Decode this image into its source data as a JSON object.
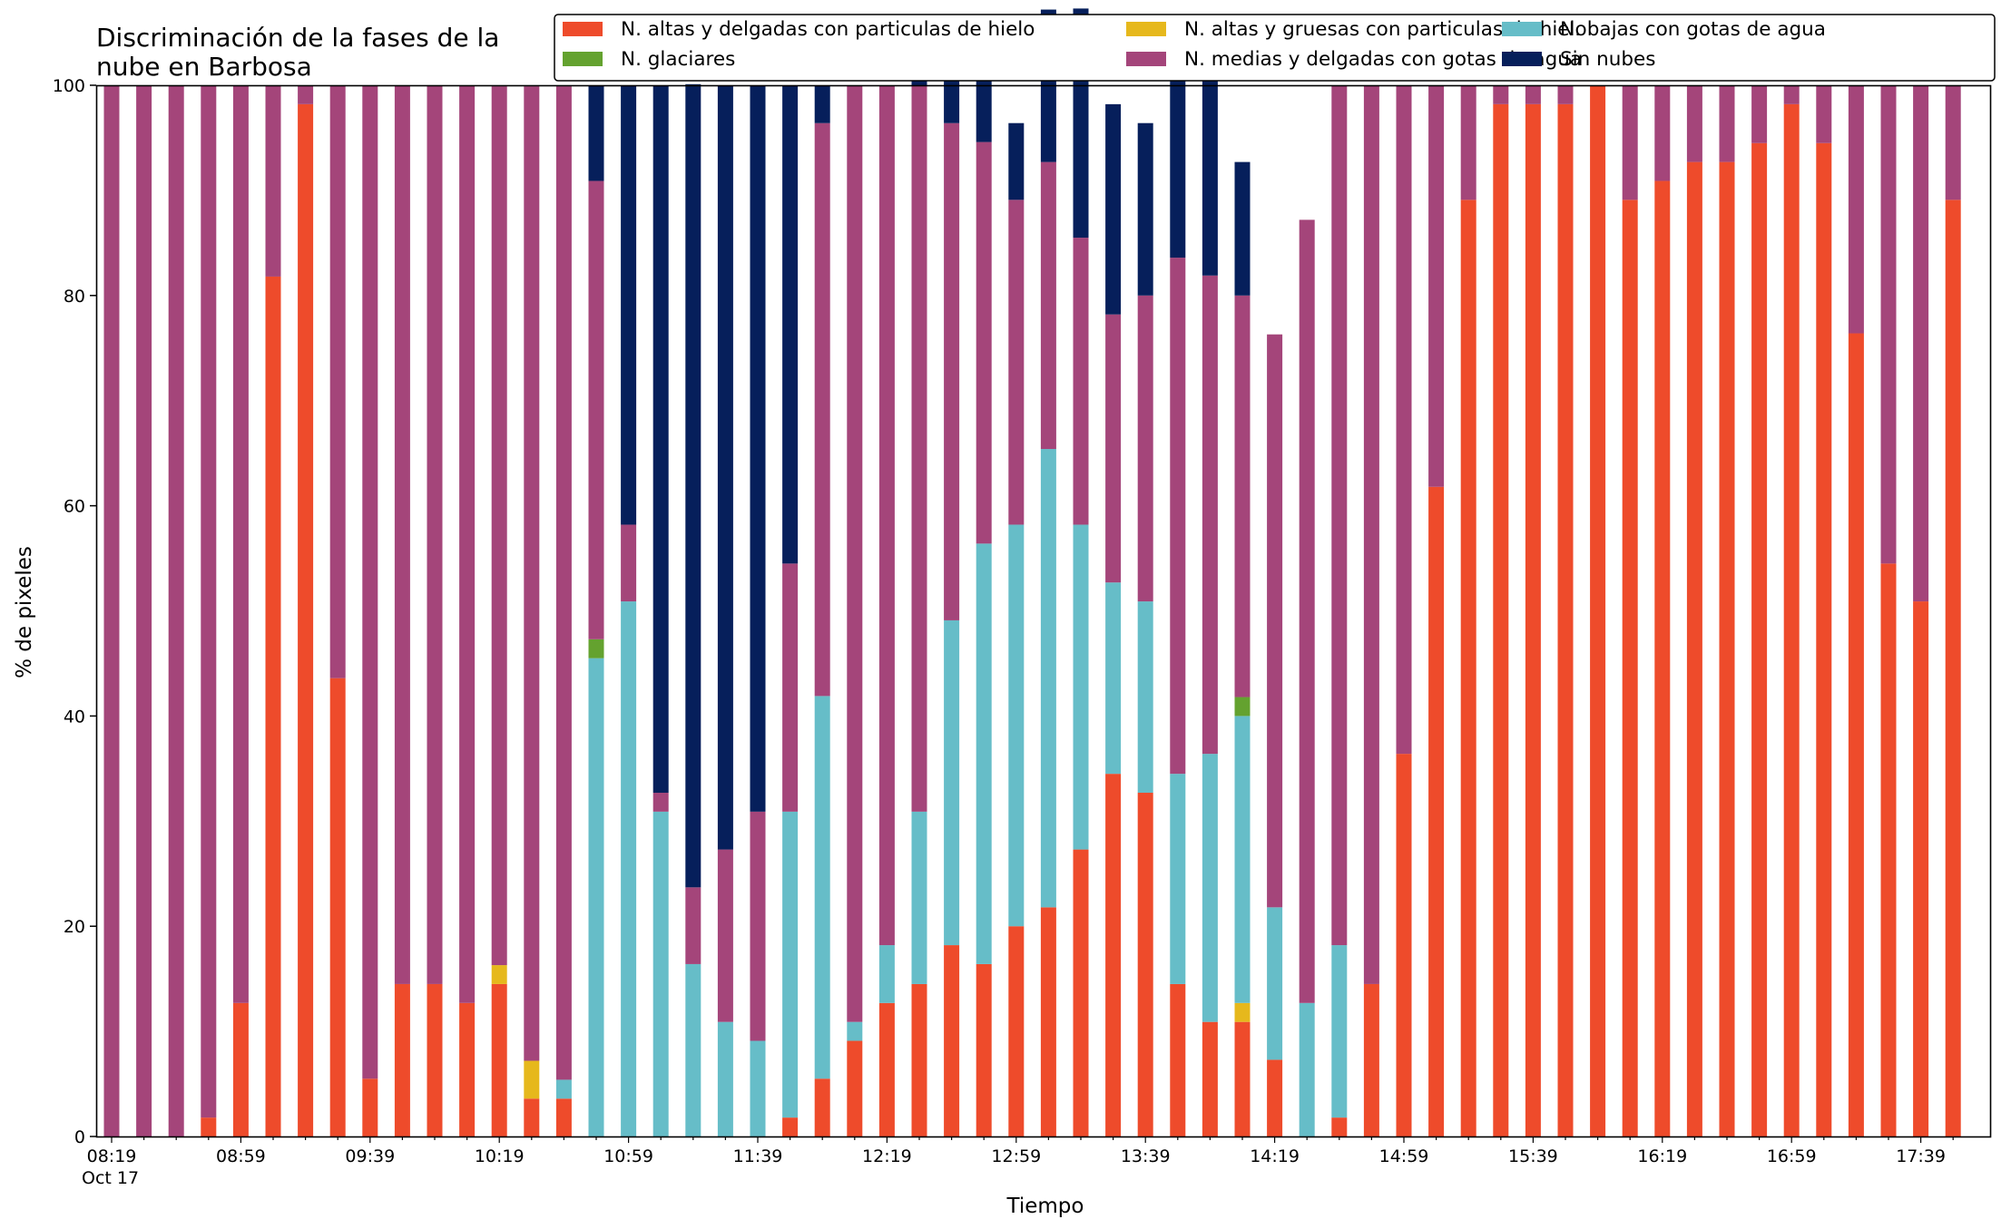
{
  "chart_data": {
    "type": "bar",
    "stacked": true,
    "title_lines": [
      "Discriminación de la fases de la",
      "nube en Barbosa"
    ],
    "xlabel": "Tiempo",
    "ylabel": "% de pixeles",
    "ylim": [
      0,
      100
    ],
    "yticks": [
      0,
      20,
      40,
      60,
      80,
      100
    ],
    "xtick_labels": [
      "08:19",
      "08:59",
      "09:39",
      "10:19",
      "10:59",
      "11:39",
      "12:19",
      "12:59",
      "13:39",
      "14:19",
      "14:59",
      "15:39",
      "16:19",
      "16:59",
      "17:39"
    ],
    "xtick_sublabel": "Oct 17",
    "grid": false,
    "legend_position": "top-right",
    "legend": [
      {
        "name": "N. altas y delgadas con particulas de hielo",
        "color": "#ee4b2b"
      },
      {
        "name": "N. altas y gruesas con particulas de hielo",
        "color": "#e6b81c"
      },
      {
        "name": "N. bajas con gotas de agua",
        "color": "#66bdc8"
      },
      {
        "name": "N. glaciares",
        "color": "#64a22f"
      },
      {
        "name": "N. medias y delgadas con gotas de agua",
        "color": "#a4457a"
      },
      {
        "name": "Sin nubes",
        "color": "#061f5b"
      }
    ],
    "series": [
      {
        "name": "N. altas y delgadas con particulas de hielo",
        "color": "#ee4b2b",
        "values": [
          0,
          0,
          0,
          1.8,
          12.7,
          81.8,
          98.2,
          43.6,
          5.5,
          14.5,
          14.5,
          12.7,
          14.5,
          3.6,
          3.6,
          0,
          0,
          0,
          0,
          0,
          0,
          1.8,
          5.5,
          9.1,
          12.7,
          14.5,
          18.2,
          16.4,
          20,
          21.8,
          27.3,
          34.5,
          32.7,
          14.5,
          10.9,
          10.9,
          7.3,
          0,
          1.8,
          14.5,
          36.4,
          61.8,
          89.1,
          98.2,
          98.2,
          98.2,
          100,
          89.1,
          90.9,
          92.7,
          92.7,
          94.5,
          98.2,
          94.5,
          76.4,
          54.5,
          50.9,
          89.1
        ]
      },
      {
        "name": "N. altas y gruesas con particulas de hielo",
        "color": "#e6b81c",
        "values": [
          0,
          0,
          0,
          0,
          0,
          0,
          0,
          0,
          0,
          0,
          0,
          0,
          1.8,
          3.6,
          0,
          0,
          0,
          0,
          0,
          0,
          0,
          0,
          0,
          0,
          0,
          0,
          0,
          0,
          0,
          0,
          0,
          0,
          0,
          0,
          0,
          1.8,
          0,
          0,
          0,
          0,
          0,
          0,
          0,
          0,
          0,
          0,
          0,
          0,
          0,
          0,
          0,
          0,
          0,
          0,
          0,
          0,
          0,
          0
        ]
      },
      {
        "name": "N. bajas con gotas de agua",
        "color": "#66bdc8",
        "values": [
          0,
          0,
          0,
          0,
          0,
          0,
          0,
          0,
          0,
          0,
          0,
          0,
          0,
          0,
          1.8,
          45.5,
          50.9,
          30.9,
          16.4,
          10.9,
          9.1,
          29.1,
          36.4,
          1.8,
          5.5,
          16.4,
          30.9,
          40,
          38.2,
          43.6,
          30.9,
          18.2,
          18.2,
          20,
          25.5,
          27.3,
          14.5,
          12.7,
          16.4,
          0,
          0,
          0,
          0,
          0,
          0,
          0,
          0,
          0,
          0,
          0,
          0,
          0,
          0,
          0,
          0,
          0,
          0,
          0
        ]
      },
      {
        "name": "N. glaciares",
        "color": "#64a22f",
        "values": [
          0,
          0,
          0,
          0,
          0,
          0,
          0,
          0,
          0,
          0,
          0,
          0,
          0,
          0,
          0,
          1.8,
          0,
          0,
          0,
          0,
          0,
          0,
          0,
          0,
          0,
          0,
          0,
          0,
          0,
          0,
          0,
          0,
          0,
          0,
          0,
          1.8,
          0,
          0,
          0,
          0,
          0,
          0,
          0,
          0,
          0,
          0,
          0,
          0,
          0,
          0,
          0,
          0,
          0,
          0,
          0,
          0,
          0,
          0
        ]
      },
      {
        "name": "N. medias y delgadas con gotas de agua",
        "color": "#a4457a",
        "values": [
          100,
          100,
          100,
          98.2,
          87.3,
          18.2,
          1.8,
          56.4,
          94.5,
          85.5,
          85.5,
          87.3,
          83.6,
          92.7,
          94.5,
          43.6,
          7.3,
          1.8,
          7.3,
          16.4,
          21.8,
          23.6,
          54.5,
          89.1,
          81.8,
          69.1,
          47.3,
          38.2,
          30.9,
          27.3,
          27.3,
          25.5,
          29.1,
          49.1,
          45.5,
          38.2,
          54.5,
          74.5,
          81.8,
          85.5,
          63.6,
          38.2,
          10.9,
          1.8,
          1.8,
          1.8,
          0,
          10.9,
          9.1,
          7.3,
          7.3,
          5.5,
          1.8,
          5.5,
          23.6,
          45.5,
          49.1,
          10.9
        ]
      },
      {
        "name": "Sin nubes",
        "color": "#061f5b",
        "values": [
          0,
          0,
          0,
          0,
          0,
          0,
          0,
          0,
          0,
          0,
          0,
          0,
          0,
          0,
          0,
          9.1,
          41.8,
          67.3,
          76.4,
          72.7,
          69.1,
          45.5,
          3.6,
          0,
          0,
          3.6,
          5.5,
          10.9,
          7.3,
          14.5,
          21.8,
          20,
          16.4,
          18.2,
          20,
          12.7,
          0,
          0,
          0,
          0,
          0,
          0,
          0,
          0,
          0,
          0,
          0,
          0,
          0,
          0,
          0,
          0,
          0,
          0,
          0,
          0,
          0,
          0
        ]
      }
    ]
  }
}
